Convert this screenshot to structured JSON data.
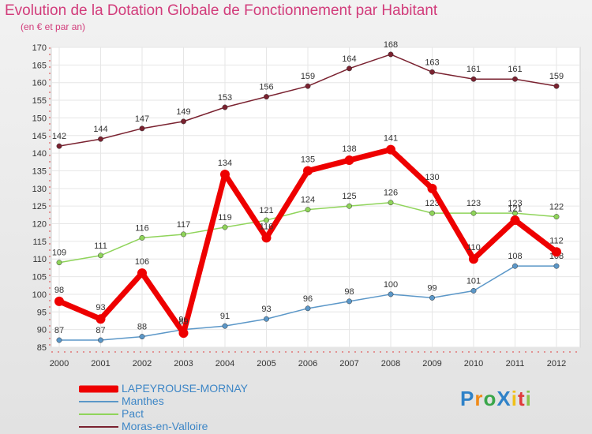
{
  "chart_data": {
    "type": "line",
    "title": "Evolution de la Dotation Globale de Fonctionnement par Habitant",
    "subtitle": "(en € et par an)",
    "categories": [
      "2000",
      "2001",
      "2002",
      "2003",
      "2004",
      "2005",
      "2006",
      "2007",
      "2008",
      "2009",
      "2010",
      "2011",
      "2012"
    ],
    "ylim": [
      85,
      170
    ],
    "yticks": [
      85,
      90,
      95,
      100,
      105,
      110,
      115,
      120,
      125,
      130,
      135,
      140,
      145,
      150,
      155,
      160,
      165,
      170
    ],
    "series": [
      {
        "name": "Moras-en-Valloire",
        "color": "#7a2230",
        "values": [
          142,
          144,
          147,
          149,
          153,
          156,
          159,
          164,
          168,
          163,
          161,
          161,
          159
        ]
      },
      {
        "name": "Pact",
        "color": "#8fd45a",
        "values": [
          109,
          111,
          116,
          117,
          119,
          121,
          124,
          125,
          126,
          123,
          123,
          123,
          122
        ]
      },
      {
        "name": "Manthes",
        "color": "#5b97c8",
        "values": [
          87,
          87,
          88,
          90,
          91,
          93,
          96,
          98,
          100,
          99,
          101,
          108,
          108
        ]
      },
      {
        "name": "LAPEYROUSE-MORNAY",
        "color": "#ee0000",
        "values": [
          98,
          93,
          106,
          89,
          134,
          116,
          135,
          138,
          141,
          130,
          110,
          121,
          112
        ]
      }
    ]
  },
  "legend": [
    {
      "label": "LAPEYROUSE-MORNAY",
      "color": "#ee0000"
    },
    {
      "label": "Manthes",
      "color": "#5b97c8"
    },
    {
      "label": "Pact",
      "color": "#8fd45a"
    },
    {
      "label": "Moras-en-Valloire",
      "color": "#7a2230"
    }
  ],
  "logo": {
    "text": "ProXiti",
    "letters": [
      "P",
      "r",
      "o",
      "X",
      "i",
      "t",
      "i"
    ],
    "colors": [
      "#2f82c8",
      "#f08a18",
      "#3aa64a",
      "#2f82c8",
      "#f0c018",
      "#e03a3a",
      "#8bc34a"
    ]
  }
}
